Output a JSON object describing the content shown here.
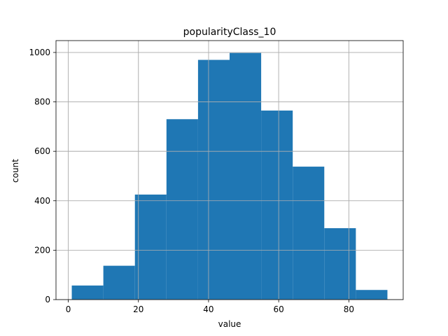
{
  "chart_data": {
    "type": "bar",
    "title": "popularityClass_10",
    "xlabel": "value",
    "ylabel": "count",
    "bin_edges": [
      1,
      10,
      19,
      28,
      37,
      46,
      55,
      64,
      73,
      82,
      91
    ],
    "values": [
      57,
      137,
      425,
      730,
      970,
      998,
      765,
      538,
      289,
      39
    ],
    "xlim": [
      -3.5,
      95.5
    ],
    "ylim": [
      0,
      1048
    ],
    "xticks": [
      0,
      20,
      40,
      60,
      80
    ],
    "yticks": [
      0,
      200,
      400,
      600,
      800,
      1000
    ],
    "grid": true,
    "colors": {
      "bar": "#1f77b4",
      "grid": "#b0b0b0",
      "axis": "#000000"
    }
  }
}
